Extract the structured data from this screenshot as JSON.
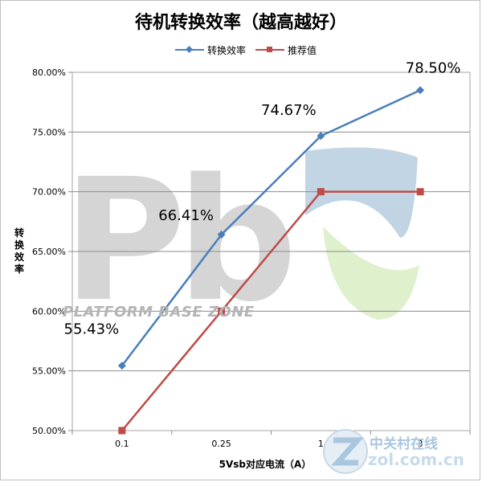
{
  "chart_data": {
    "type": "line",
    "title": "待机转换效率（越高越好）",
    "xlabel": "5Vsb对应电流（A）",
    "ylabel": "转换效率",
    "categories": [
      "0.1",
      "0.25",
      "1",
      "3"
    ],
    "ylim": [
      0.5,
      0.8
    ],
    "yticks": [
      "50.00%",
      "55.00%",
      "60.00%",
      "65.00%",
      "70.00%",
      "75.00%",
      "80.00%"
    ],
    "grid": true,
    "legend_position": "top",
    "series": [
      {
        "name": "转换效率",
        "values": [
          0.5543,
          0.6641,
          0.7467,
          0.785
        ],
        "data_labels": [
          "55.43%",
          "66.41%",
          "74.67%",
          "78.50%"
        ],
        "color": "#4a7ebb",
        "marker": "diamond"
      },
      {
        "name": "推荐值",
        "values": [
          0.5,
          0.6,
          0.7,
          0.7
        ],
        "color": "#be4b48",
        "marker": "square"
      }
    ]
  },
  "watermark": {
    "text": "PLATFORM BASE ZONE",
    "logo_text": "Pb"
  },
  "site_logo": {
    "cn": "中关村在线",
    "en": "zol.com.cn"
  }
}
